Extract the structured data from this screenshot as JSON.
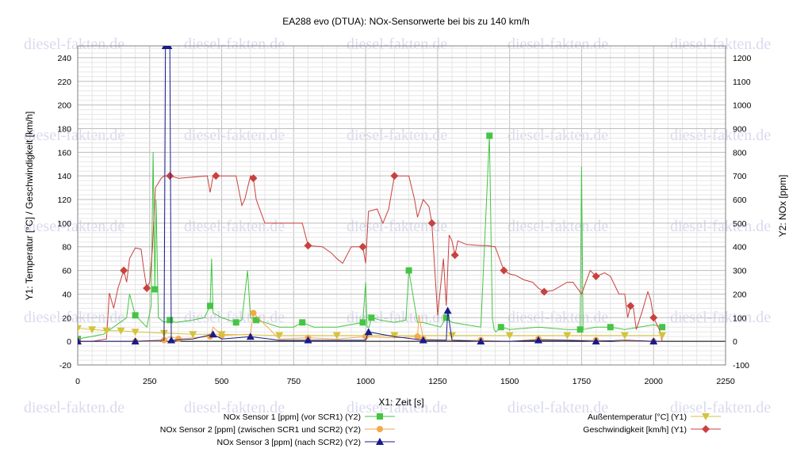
{
  "chart_data": {
    "type": "line",
    "title": "EA288 evo (DTUA): NOx-Sensorwerte bei bis zu 140 km/h",
    "xlabel": "X1: Zeit [s]",
    "ylabel_left": "Y1: Temperatur [°C] / Geschwindigkeit [km/h]",
    "ylabel_right": "Y2: NOx [ppm]",
    "xlim": [
      0,
      2250
    ],
    "ylim_left": [
      -20,
      250
    ],
    "ylim_right": [
      -100,
      1250
    ],
    "x_ticks": [
      "0",
      "250",
      "500",
      "750",
      "1000",
      "1250",
      "1500",
      "1750",
      "2000",
      "2250"
    ],
    "y_left_ticks": [
      "-20",
      "0",
      "20",
      "40",
      "60",
      "80",
      "100",
      "120",
      "140",
      "160",
      "180",
      "200",
      "220",
      "240"
    ],
    "y_right_ticks": [
      "-100",
      "0",
      "100",
      "200",
      "300",
      "400",
      "500",
      "600",
      "700",
      "800",
      "900",
      "1000",
      "1100",
      "1200"
    ],
    "grid": true,
    "legend_position": "bottom",
    "watermark": "diesel-fakten.de",
    "series": [
      {
        "name": "NOx Sensor 1 [ppm] (vor SCR1) (Y2)",
        "axis": "right",
        "color": "#44c544",
        "marker": "square",
        "x": [
          0,
          90,
          170,
          180,
          200,
          240,
          255,
          262,
          268,
          272,
          280,
          300,
          320,
          340,
          400,
          440,
          460,
          465,
          470,
          500,
          550,
          570,
          590,
          600,
          620,
          650,
          700,
          750,
          780,
          800,
          820,
          900,
          990,
          1000,
          1005,
          1012,
          1020,
          1050,
          1100,
          1140,
          1150,
          1180,
          1200,
          1260,
          1280,
          1300,
          1350,
          1400,
          1430,
          1440,
          1446,
          1452,
          1470,
          1500,
          1600,
          1700,
          1745,
          1750,
          1755,
          1800,
          1850,
          1900,
          1950,
          2000,
          2030
        ],
        "y": [
          10,
          30,
          100,
          200,
          110,
          60,
          150,
          800,
          220,
          600,
          100,
          80,
          90,
          80,
          90,
          100,
          150,
          350,
          120,
          100,
          80,
          90,
          300,
          100,
          90,
          80,
          60,
          60,
          80,
          70,
          60,
          60,
          80,
          250,
          60,
          60,
          100,
          90,
          80,
          90,
          300,
          80,
          80,
          60,
          100,
          80,
          70,
          60,
          870,
          100,
          50,
          40,
          60,
          50,
          60,
          50,
          50,
          740,
          50,
          60,
          60,
          50,
          60,
          70,
          60
        ]
      },
      {
        "name": "NOx Sensor 2 [ppm] (zwischen SCR1 und SCR2) (Y2)",
        "axis": "right",
        "color": "#f5a84a",
        "marker": "circle",
        "x": [
          0,
          100,
          200,
          280,
          300,
          320,
          350,
          400,
          460,
          470,
          500,
          600,
          610,
          700,
          800,
          900,
          1000,
          1100,
          1180,
          1185,
          1200,
          1300,
          1400,
          1500,
          1600,
          1700,
          1800,
          1900,
          2000,
          2030
        ],
        "y": [
          0,
          0,
          0,
          0,
          5,
          20,
          10,
          15,
          20,
          60,
          25,
          30,
          120,
          10,
          15,
          10,
          20,
          15,
          20,
          110,
          10,
          5,
          5,
          0,
          10,
          5,
          5,
          0,
          0,
          0
        ]
      },
      {
        "name": "NOx Sensor 3 [ppm] (nach SCR2) (Y2)",
        "axis": "right",
        "color": "#1a1a8c",
        "marker": "triangle",
        "x": [
          0,
          100,
          200,
          300,
          305,
          310,
          315,
          320,
          325,
          400,
          470,
          500,
          600,
          700,
          800,
          1000,
          1010,
          1100,
          1200,
          1280,
          1285,
          1300,
          1400,
          1500,
          1600,
          1700,
          1800,
          1900,
          2000,
          2030
        ],
        "y": [
          0,
          0,
          0,
          5,
          1250,
          1250,
          1250,
          1250,
          5,
          10,
          30,
          10,
          20,
          5,
          5,
          5,
          40,
          20,
          5,
          5,
          130,
          5,
          0,
          0,
          5,
          5,
          0,
          5,
          0,
          0
        ]
      },
      {
        "name": "Außentemperatur [°C] (Y1)",
        "axis": "left",
        "color": "#d4c33c",
        "marker": "triangle-down",
        "x": [
          0,
          50,
          100,
          150,
          200,
          300,
          400,
          500,
          700,
          900,
          1100,
          1300,
          1500,
          1700,
          1900,
          2030
        ],
        "y": [
          11,
          10,
          9,
          9,
          8,
          7,
          6,
          6,
          5,
          5,
          5,
          5,
          5,
          5,
          5,
          5
        ]
      },
      {
        "name": "Geschwindigkeit [km/h] (Y1)",
        "axis": "left",
        "color": "#c9413e",
        "marker": "diamond",
        "x": [
          0,
          50,
          100,
          110,
          125,
          140,
          160,
          170,
          180,
          200,
          220,
          230,
          240,
          250,
          260,
          270,
          290,
          300,
          320,
          350,
          400,
          450,
          460,
          470,
          480,
          500,
          550,
          570,
          580,
          600,
          610,
          620,
          650,
          700,
          750,
          780,
          800,
          850,
          880,
          900,
          920,
          950,
          990,
          1000,
          1010,
          1040,
          1060,
          1080,
          1100,
          1150,
          1170,
          1180,
          1200,
          1220,
          1230,
          1250,
          1270,
          1280,
          1290,
          1300,
          1310,
          1320,
          1350,
          1400,
          1420,
          1450,
          1480,
          1500,
          1520,
          1550,
          1580,
          1600,
          1620,
          1650,
          1700,
          1720,
          1750,
          1780,
          1800,
          1830,
          1850,
          1880,
          1900,
          1910,
          1920,
          1930,
          1940,
          1960,
          1980,
          1990,
          2000,
          2020,
          2030
        ],
        "y": [
          0,
          0,
          2,
          41,
          28,
          45,
          60,
          50,
          70,
          79,
          78,
          60,
          45,
          50,
          80,
          130,
          138,
          140,
          140,
          138,
          139,
          140,
          126,
          140,
          140,
          140,
          140,
          115,
          120,
          140,
          138,
          120,
          100,
          100,
          100,
          100,
          81,
          80,
          75,
          70,
          66,
          80,
          80,
          66,
          110,
          112,
          100,
          112,
          140,
          140,
          120,
          105,
          120,
          114,
          100,
          22,
          70,
          30,
          90,
          85,
          73,
          85,
          82,
          81,
          81,
          80,
          60,
          57,
          56,
          52,
          50,
          45,
          42,
          43,
          50,
          50,
          40,
          60,
          55,
          58,
          55,
          40,
          40,
          20,
          30,
          28,
          10,
          25,
          42,
          35,
          20,
          10,
          0
        ]
      }
    ]
  }
}
